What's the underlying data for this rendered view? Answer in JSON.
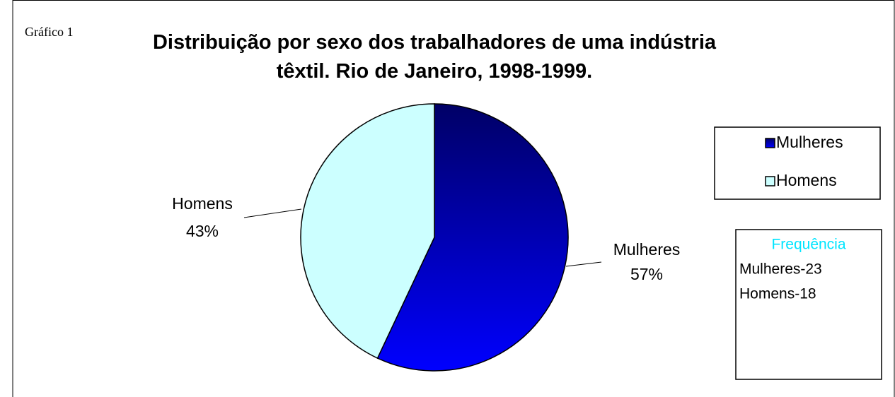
{
  "chart_data": {
    "type": "pie",
    "label": "Gráfico 1",
    "title": "Distribuição por sexo dos trabalhadores de uma indústria têxtil. Rio de Janeiro, 1998-1999.",
    "categories": [
      "Mulheres",
      "Homens"
    ],
    "values": [
      57,
      43
    ],
    "value_labels": [
      "57%",
      "43%"
    ],
    "colors": [
      "#0000ff",
      "#ccffff"
    ],
    "legend": "right",
    "annotation": {
      "title": "Frequência",
      "lines": [
        "Mulheres-23",
        "Homens-18"
      ]
    }
  }
}
